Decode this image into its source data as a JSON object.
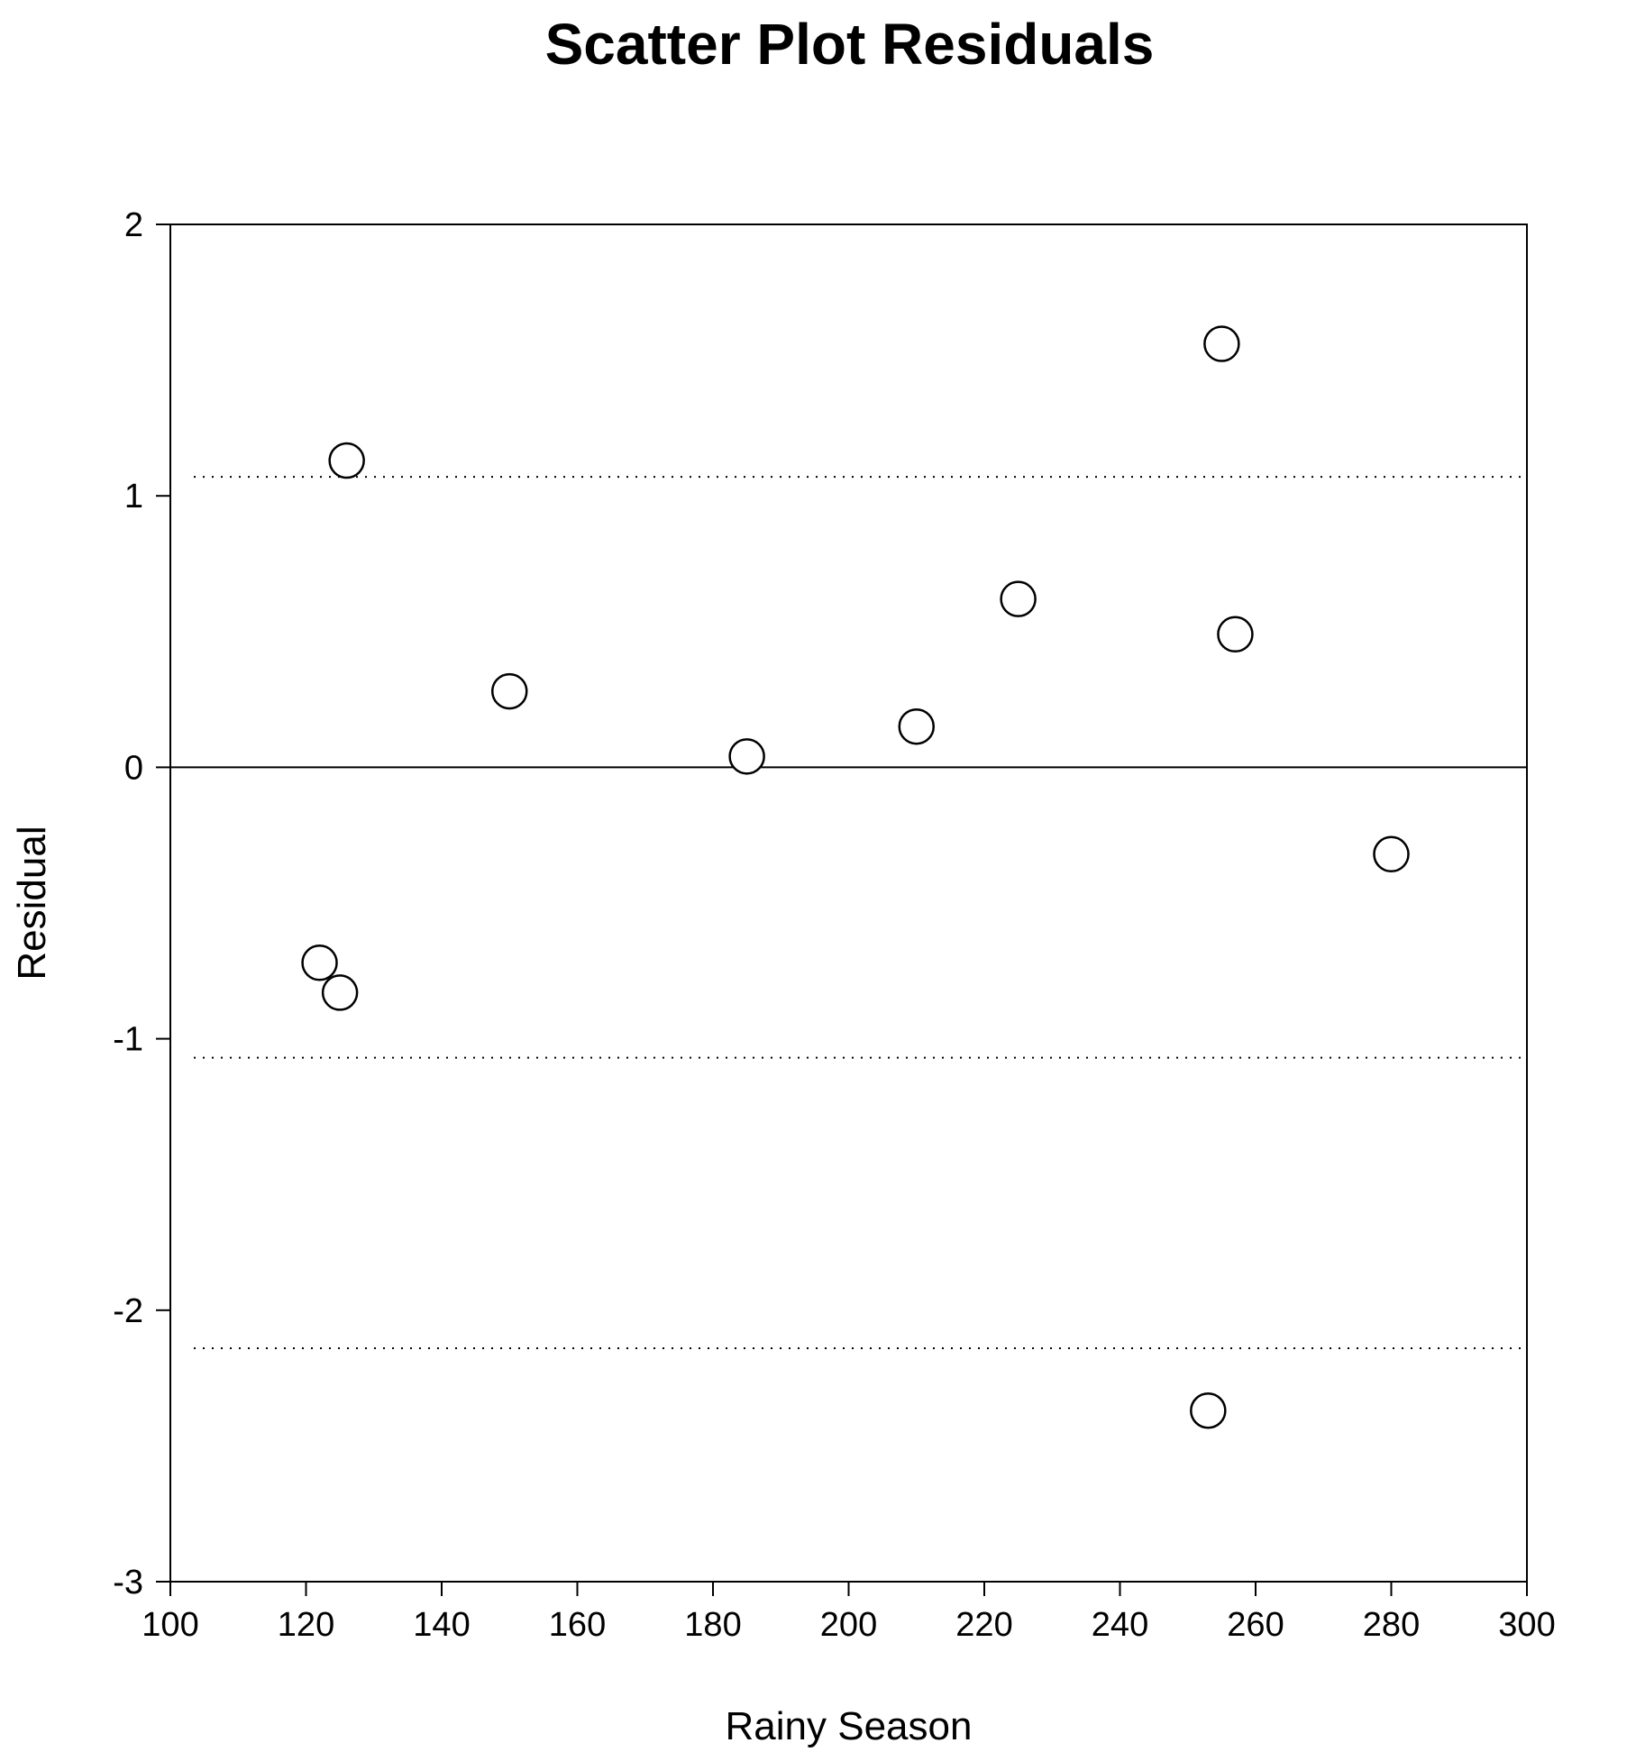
{
  "chart_data": {
    "type": "scatter",
    "title": "Scatter Plot Residuals",
    "xlabel": "Rainy Season",
    "ylabel": "Residual",
    "xlim": [
      100,
      300
    ],
    "ylim": [
      -3,
      2
    ],
    "x_ticks": [
      "100",
      "120",
      "140",
      "160",
      "180",
      "200",
      "220",
      "240",
      "260",
      "280",
      "300"
    ],
    "y_ticks": [
      "-3",
      "-2",
      "-1",
      "0",
      "1",
      "2"
    ],
    "grid": false,
    "zero_line": 0,
    "reference_lines": [
      1.07,
      -1.07,
      -2.14
    ],
    "series": [
      {
        "points": [
          {
            "x": 122,
            "y": -0.72
          },
          {
            "x": 125,
            "y": -0.83
          },
          {
            "x": 126,
            "y": 1.13
          },
          {
            "x": 150,
            "y": 0.28
          },
          {
            "x": 185,
            "y": 0.04
          },
          {
            "x": 210,
            "y": 0.15
          },
          {
            "x": 225,
            "y": 0.62
          },
          {
            "x": 253,
            "y": -2.37
          },
          {
            "x": 255,
            "y": 1.56
          },
          {
            "x": 257,
            "y": 0.49
          },
          {
            "x": 280,
            "y": -0.32
          }
        ]
      }
    ]
  }
}
